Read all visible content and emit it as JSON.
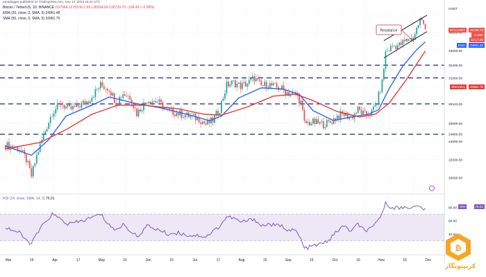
{
  "header": {
    "publisher": "ranadagger published on TradingView.com, Nov 13, 2023 15:42 UTC",
    "symbol": "Bitcoin / TetherUS, 1D, BINANCE",
    "ohlc": "O37064.13 H37417.99 L36534.04 C36729.70 −334.43 (−0.90%)",
    "ema": "EMA (20, close, 0, SMA, 5)  34961.48",
    "sma": "SMA (50, close, 0, SMA, 5)  33961.75"
  },
  "price_tags": {
    "last_label": "BTCUSDT",
    "last_value": "36729.70",
    "last_change": "−1.89K",
    "last_time": "10:17:49",
    "ema_label": "EMA",
    "ema_value": "34961.48",
    "sma_label": "SMA(MA)",
    "sma_value": "33961.75",
    "rsi_label": "RSI",
    "rsi_value": "75.91"
  },
  "annotations": {
    "resistance": "Resistance"
  },
  "rsi_header": {
    "label": "RSI (14, close, SMA, 14, 2)",
    "value": "75.91"
  },
  "colors": {
    "up": "#26a69a",
    "down": "#ef5350",
    "ema": "#2962ff",
    "sma": "#e53935",
    "rsi": "#7e57c2",
    "level": "#1a237e",
    "rsi_band": "#ede7f6"
  },
  "watermark_text": "کریپتونگار",
  "chart_data": [
    {
      "type": "candlestick",
      "title": "Bitcoin / TetherUS, 1D, BINANCE",
      "ylim": [
        19000,
        38200
      ],
      "y_ticks": [
        "USDT",
        "36000.00",
        "34000.00",
        "32400.00",
        "31000.00",
        "28143.00",
        "26000.00",
        "24800.00",
        "24000.00",
        "22000.00",
        "20000.00"
      ],
      "x_ticks": [
        "Mar",
        "15",
        "Apr",
        "17",
        "May",
        "15",
        "Jun",
        "15",
        "Jul",
        "17",
        "Aug",
        "15",
        "Sep",
        "15",
        "Oct",
        "16",
        "Nov",
        "15",
        "Dec"
      ],
      "horizontal_levels": [
        32400,
        31000,
        28143,
        24800
      ],
      "series": [
        {
          "name": "BTCUSDT",
          "kind": "close",
          "points": [
            [
              0,
              23600
            ],
            [
              8,
              23200
            ],
            [
              12,
              22000
            ],
            [
              15,
              20200
            ],
            [
              18,
              22400
            ],
            [
              22,
              24700
            ],
            [
              27,
              27200
            ],
            [
              32,
              28200
            ],
            [
              37,
              27500
            ],
            [
              42,
              27900
            ],
            [
              48,
              28500
            ],
            [
              55,
              30200
            ],
            [
              60,
              29800
            ],
            [
              64,
              28300
            ],
            [
              68,
              29300
            ],
            [
              72,
              28900
            ],
            [
              76,
              27100
            ],
            [
              82,
              28600
            ],
            [
              88,
              28400
            ],
            [
              94,
              27400
            ],
            [
              100,
              27100
            ],
            [
              106,
              26800
            ],
            [
              112,
              26500
            ],
            [
              116,
              25900
            ],
            [
              120,
              26300
            ],
            [
              124,
              27600
            ],
            [
              128,
              30200
            ],
            [
              132,
              30500
            ],
            [
              136,
              30100
            ],
            [
              140,
              30400
            ],
            [
              144,
              31000
            ],
            [
              148,
              30100
            ],
            [
              152,
              30300
            ],
            [
              156,
              30000
            ],
            [
              160,
              29800
            ],
            [
              164,
              29300
            ],
            [
              168,
              29200
            ],
            [
              171,
              28300
            ],
            [
              173,
              26000
            ],
            [
              178,
              26100
            ],
            [
              184,
              25900
            ],
            [
              188,
              26100
            ],
            [
              192,
              26800
            ],
            [
              196,
              27000
            ],
            [
              200,
              26600
            ],
            [
              204,
              27500
            ],
            [
              208,
              26900
            ],
            [
              212,
              27200
            ],
            [
              215,
              28300
            ],
            [
              218,
              30500
            ],
            [
              220,
              33800
            ],
            [
              224,
              34500
            ],
            [
              228,
              34600
            ],
            [
              232,
              35100
            ],
            [
              236,
              35400
            ],
            [
              240,
              37400
            ],
            [
              243,
              36729
            ]
          ]
        },
        {
          "name": "EMA (20, close, 0, SMA, 5)",
          "kind": "line",
          "points": [
            [
              0,
              23500
            ],
            [
              15,
              22500
            ],
            [
              25,
              24200
            ],
            [
              35,
              26800
            ],
            [
              50,
              28000
            ],
            [
              60,
              28900
            ],
            [
              75,
              28200
            ],
            [
              90,
              27700
            ],
            [
              105,
              27000
            ],
            [
              118,
              26300
            ],
            [
              125,
              26800
            ],
            [
              135,
              28800
            ],
            [
              148,
              29900
            ],
            [
              160,
              29800
            ],
            [
              170,
              29200
            ],
            [
              178,
              27400
            ],
            [
              190,
              26300
            ],
            [
              200,
              26700
            ],
            [
              210,
              27000
            ],
            [
              216,
              27500
            ],
            [
              222,
              29800
            ],
            [
              230,
              32300
            ],
            [
              238,
              34100
            ],
            [
              243,
              34961
            ]
          ]
        },
        {
          "name": "SMA (50, close, 0, SMA, 5)",
          "kind": "line",
          "points": [
            [
              0,
              23200
            ],
            [
              20,
              23900
            ],
            [
              35,
              25300
            ],
            [
              50,
              27000
            ],
            [
              65,
              28000
            ],
            [
              80,
              28000
            ],
            [
              100,
              27600
            ],
            [
              115,
              27000
            ],
            [
              125,
              26900
            ],
            [
              140,
              27800
            ],
            [
              155,
              29000
            ],
            [
              168,
              29200
            ],
            [
              178,
              28500
            ],
            [
              192,
              27300
            ],
            [
              205,
              26700
            ],
            [
              214,
              27000
            ],
            [
              222,
              28200
            ],
            [
              232,
              30800
            ],
            [
              243,
              33961
            ]
          ]
        }
      ]
    },
    {
      "type": "line",
      "title": "RSI (14, close, SMA, 14, 2)",
      "ylim": [
        15,
        90
      ],
      "y_ticks": [
        "80.00",
        "60.00",
        "40.00",
        "20.00"
      ],
      "band": [
        30,
        70
      ],
      "series": [
        {
          "name": "RSI",
          "points": [
            [
              0,
              50
            ],
            [
              8,
              42
            ],
            [
              12,
              30
            ],
            [
              15,
              26
            ],
            [
              20,
              48
            ],
            [
              27,
              70
            ],
            [
              32,
              62
            ],
            [
              36,
              55
            ],
            [
              42,
              58
            ],
            [
              48,
              63
            ],
            [
              55,
              70
            ],
            [
              60,
              54
            ],
            [
              64,
              45
            ],
            [
              68,
              55
            ],
            [
              76,
              36
            ],
            [
              82,
              52
            ],
            [
              88,
              47
            ],
            [
              94,
              40
            ],
            [
              100,
              42
            ],
            [
              106,
              38
            ],
            [
              112,
              38
            ],
            [
              116,
              36
            ],
            [
              120,
              44
            ],
            [
              124,
              52
            ],
            [
              128,
              66
            ],
            [
              132,
              64
            ],
            [
              136,
              58
            ],
            [
              140,
              60
            ],
            [
              144,
              63
            ],
            [
              148,
              52
            ],
            [
              152,
              55
            ],
            [
              156,
              53
            ],
            [
              160,
              52
            ],
            [
              164,
              46
            ],
            [
              168,
              45
            ],
            [
              171,
              32
            ],
            [
              173,
              18
            ],
            [
              178,
              22
            ],
            [
              184,
              26
            ],
            [
              188,
              33
            ],
            [
              192,
              45
            ],
            [
              196,
              52
            ],
            [
              200,
              44
            ],
            [
              204,
              55
            ],
            [
              208,
              45
            ],
            [
              212,
              48
            ],
            [
              215,
              58
            ],
            [
              218,
              72
            ],
            [
              220,
              86
            ],
            [
              224,
              80
            ],
            [
              228,
              79
            ],
            [
              232,
              81
            ],
            [
              236,
              80
            ],
            [
              240,
              82
            ],
            [
              243,
              75.91
            ]
          ]
        }
      ]
    }
  ]
}
